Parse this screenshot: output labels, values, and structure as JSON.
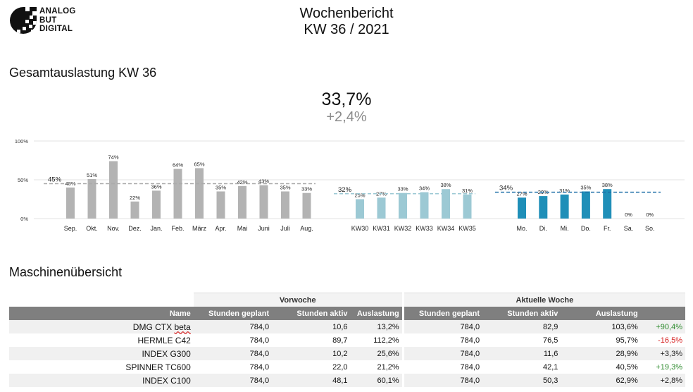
{
  "logo": {
    "line1": "ANALOG",
    "line2": "BUT",
    "line3": "DIGITAL"
  },
  "report": {
    "title": "Wochenbericht",
    "subtitle": "KW 36 / 2021"
  },
  "overview": {
    "heading": "Gesamtauslastung KW 36",
    "value": "33,7%",
    "delta": "+2,4%"
  },
  "machines": {
    "heading": "Maschinenübersicht"
  },
  "colors": {
    "months": "#b3b3b3",
    "weeks": "#9cc9d4",
    "days": "#1f8fb8",
    "positive": "#2e8b2e",
    "negative": "#d62020"
  },
  "chart_data": {
    "type": "bar",
    "ylim": [
      0,
      100
    ],
    "yticks": [
      "0%",
      "50%",
      "100%"
    ],
    "groups": [
      {
        "categories": [
          "Sep.",
          "Okt.",
          "Nov.",
          "Dez.",
          "Jan.",
          "Feb.",
          "März",
          "Apr.",
          "Mai",
          "Juni",
          "Juli",
          "Aug."
        ],
        "values": [
          40,
          51,
          74,
          22,
          36,
          64,
          65,
          35,
          42,
          43,
          35,
          33
        ],
        "labels": [
          "40%",
          "51%",
          "74%",
          "22%",
          "36%",
          "64%",
          "65%",
          "35%",
          "42%",
          "43%",
          "35%",
          "33%"
        ],
        "average": 45,
        "average_label": "45%"
      },
      {
        "categories": [
          "KW30",
          "KW31",
          "KW32",
          "KW33",
          "KW34",
          "KW35"
        ],
        "values": [
          25,
          27,
          33,
          34,
          38,
          31
        ],
        "labels": [
          "25%",
          "27%",
          "33%",
          "34%",
          "38%",
          "31%"
        ],
        "average": 32,
        "average_label": "32%"
      },
      {
        "categories": [
          "Mo.",
          "Di.",
          "Mi.",
          "Do.",
          "Fr.",
          "Sa.",
          "So."
        ],
        "values": [
          27,
          29,
          31,
          35,
          38,
          0,
          0
        ],
        "labels": [
          "27%",
          "29%",
          "31%",
          "35%",
          "38%",
          "0%",
          "0%"
        ],
        "average": 34,
        "average_label": "34%"
      }
    ]
  },
  "table": {
    "group_prev": "Vorwoche",
    "group_curr": "Aktuelle Woche",
    "headers": [
      "Name",
      "Stunden geplant",
      "Stunden aktiv",
      "Auslastung",
      "Stunden geplant",
      "Stunden aktiv",
      "Auslastung",
      ""
    ],
    "rows": [
      {
        "name": "DMG CTX beta",
        "prev_planned": "784,0",
        "prev_active": "10,6",
        "prev_util": "13,2%",
        "curr_planned": "784,0",
        "curr_active": "82,9",
        "curr_util": "103,6%",
        "change": "+90,4%",
        "trend": "pos"
      },
      {
        "name": "HERMLE C42",
        "prev_planned": "784,0",
        "prev_active": "89,7",
        "prev_util": "112,2%",
        "curr_planned": "784,0",
        "curr_active": "76,5",
        "curr_util": "95,7%",
        "change": "-16,5%",
        "trend": "neg"
      },
      {
        "name": "INDEX G300",
        "prev_planned": "784,0",
        "prev_active": "10,2",
        "prev_util": "25,6%",
        "curr_planned": "784,0",
        "curr_active": "11,6",
        "curr_util": "28,9%",
        "change": "+3,3%",
        "trend": "neu"
      },
      {
        "name": "SPINNER TC600",
        "prev_planned": "784,0",
        "prev_active": "22,0",
        "prev_util": "21,2%",
        "curr_planned": "784,0",
        "curr_active": "42,1",
        "curr_util": "40,5%",
        "change": "+19,3%",
        "trend": "pos"
      },
      {
        "name": "INDEX C100",
        "prev_planned": "784,0",
        "prev_active": "48,1",
        "prev_util": "60,1%",
        "curr_planned": "784,0",
        "curr_active": "50,3",
        "curr_util": "62,9%",
        "change": "+2,8%",
        "trend": "neu"
      }
    ]
  }
}
